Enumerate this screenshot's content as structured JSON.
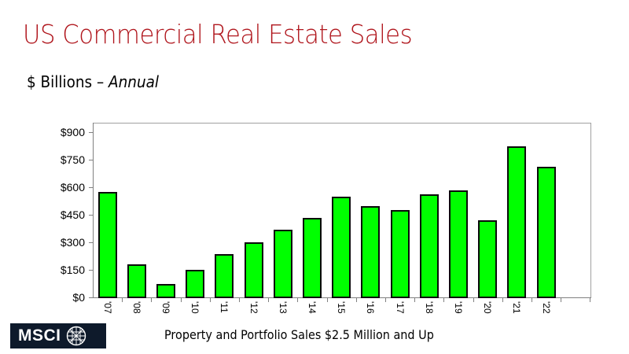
{
  "slide": {
    "title": "US Commercial Real Estate Sales",
    "subtitle_main": "$ Billions – ",
    "subtitle_italic": "Annual",
    "footnote": "Property and Portfolio Sales $2.5 Million and Up",
    "logo_text": "MSCI"
  },
  "colors": {
    "title": "#b0161d",
    "bar_fill": "#00ff00",
    "bar_border": "#0a0a0a",
    "logo_bg": "#0e1a2b"
  },
  "chart_data": {
    "type": "bar",
    "title": "US Commercial Real Estate Sales",
    "subtitle": "$ Billions – Annual",
    "xlabel": "",
    "ylabel": "$ Billions",
    "categories": [
      "'07",
      "'08",
      "'09",
      "'10",
      "'11",
      "'12",
      "'13",
      "'14",
      "'15",
      "'16",
      "'17",
      "'18",
      "'19",
      "'20",
      "'21",
      "'22"
    ],
    "values": [
      574,
      182,
      73,
      151,
      237,
      301,
      369,
      435,
      550,
      497,
      476,
      563,
      581,
      418,
      824,
      711
    ],
    "ylim": [
      0,
      900
    ],
    "yticks": [
      0,
      150,
      300,
      450,
      600,
      750,
      900
    ],
    "ytick_labels": [
      "$0",
      "$150",
      "$300",
      "$450",
      "$600",
      "$750",
      "$900"
    ],
    "grid": false,
    "legend": null,
    "annotation": "Property and Portfolio Sales $2.5 Million and Up"
  }
}
